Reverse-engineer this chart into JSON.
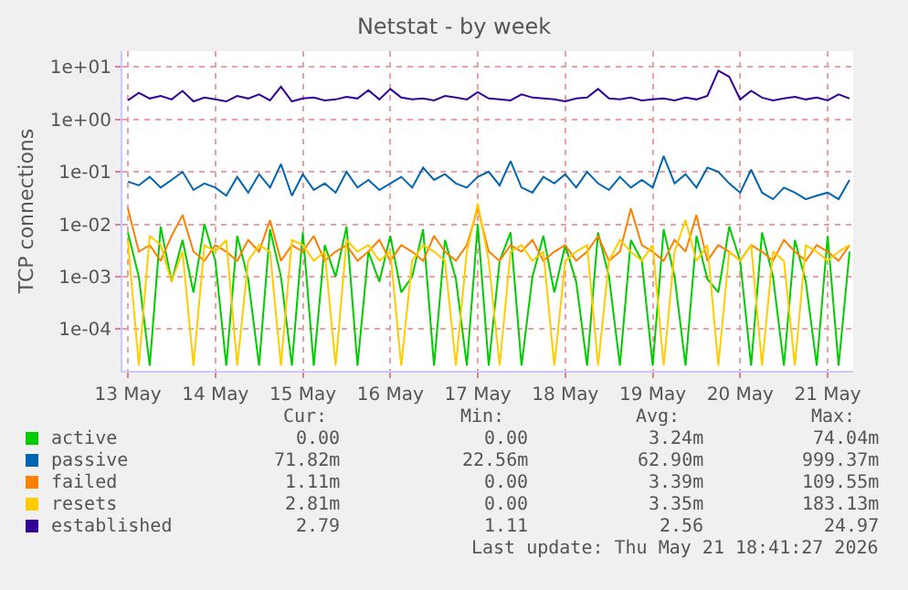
{
  "chart_data": {
    "type": "line",
    "title": "Netstat - by week",
    "ylabel": "TCP connections",
    "log": "y",
    "grid": true,
    "legend": "bottom",
    "marker": "none",
    "line_style": "solid",
    "ylim": [
      1.6e-05,
      20
    ],
    "yticks": [
      {
        "value": 0.0001,
        "label": "1e-04"
      },
      {
        "value": 0.001,
        "label": "1e-03"
      },
      {
        "value": 0.01,
        "label": "1e-02"
      },
      {
        "value": 0.1,
        "label": "1e-01"
      },
      {
        "value": 1,
        "label": "1e+00"
      },
      {
        "value": 10,
        "label": "1e+01"
      }
    ],
    "xlim": [
      "2026-05-12T22:30",
      "2026-05-21T07:00"
    ],
    "xticks": [
      {
        "value": "2026-05-13",
        "label": "13 May"
      },
      {
        "value": "2026-05-14",
        "label": "14 May"
      },
      {
        "value": "2026-05-15",
        "label": "15 May"
      },
      {
        "value": "2026-05-16",
        "label": "16 May"
      },
      {
        "value": "2026-05-17",
        "label": "17 May"
      },
      {
        "value": "2026-05-18",
        "label": "18 May"
      },
      {
        "value": "2026-05-19",
        "label": "19 May"
      },
      {
        "value": "2026-05-20",
        "label": "20 May"
      },
      {
        "value": "2026-05-21",
        "label": "21 May"
      }
    ],
    "x": [
      "2026-05-13T00:00",
      "2026-05-13T03:00",
      "2026-05-13T06:00",
      "2026-05-13T09:00",
      "2026-05-13T12:00",
      "2026-05-13T15:00",
      "2026-05-13T18:00",
      "2026-05-13T21:00",
      "2026-05-14T00:00",
      "2026-05-14T03:00",
      "2026-05-14T06:00",
      "2026-05-14T09:00",
      "2026-05-14T12:00",
      "2026-05-14T15:00",
      "2026-05-14T18:00",
      "2026-05-14T21:00",
      "2026-05-15T00:00",
      "2026-05-15T03:00",
      "2026-05-15T06:00",
      "2026-05-15T09:00",
      "2026-05-15T12:00",
      "2026-05-15T15:00",
      "2026-05-15T18:00",
      "2026-05-15T21:00",
      "2026-05-16T00:00",
      "2026-05-16T03:00",
      "2026-05-16T06:00",
      "2026-05-16T09:00",
      "2026-05-16T12:00",
      "2026-05-16T15:00",
      "2026-05-16T18:00",
      "2026-05-16T21:00",
      "2026-05-17T00:00",
      "2026-05-17T03:00",
      "2026-05-17T06:00",
      "2026-05-17T09:00",
      "2026-05-17T12:00",
      "2026-05-17T15:00",
      "2026-05-17T18:00",
      "2026-05-17T21:00",
      "2026-05-18T00:00",
      "2026-05-18T03:00",
      "2026-05-18T06:00",
      "2026-05-18T09:00",
      "2026-05-18T12:00",
      "2026-05-18T15:00",
      "2026-05-18T18:00",
      "2026-05-18T21:00",
      "2026-05-19T00:00",
      "2026-05-19T03:00",
      "2026-05-19T06:00",
      "2026-05-19T09:00",
      "2026-05-19T12:00",
      "2026-05-19T15:00",
      "2026-05-19T18:00",
      "2026-05-19T21:00",
      "2026-05-20T00:00",
      "2026-05-20T03:00",
      "2026-05-20T06:00",
      "2026-05-20T09:00",
      "2026-05-20T12:00",
      "2026-05-20T15:00",
      "2026-05-20T18:00",
      "2026-05-20T21:00",
      "2026-05-21T00:00",
      "2026-05-21T03:00",
      "2026-05-21T06:00"
    ],
    "series": [
      {
        "name": "active",
        "color": "#00cc00",
        "values": [
          0.007,
          0.001,
          2e-05,
          0.009,
          0.0008,
          0.005,
          0.0005,
          0.01,
          0.002,
          2e-05,
          0.006,
          0.0009,
          2e-05,
          0.008,
          0.001,
          2e-05,
          0.007,
          2e-05,
          0.004,
          0.001,
          0.009,
          2e-05,
          0.003,
          0.0008,
          0.006,
          0.0005,
          0.001,
          0.008,
          2e-05,
          0.005,
          0.0009,
          2e-05,
          0.01,
          2e-05,
          0.002,
          0.007,
          2e-05,
          0.001,
          0.006,
          0.0005,
          0.004,
          0.0008,
          2e-05,
          0.007,
          0.001,
          2e-05,
          0.005,
          0.002,
          2e-05,
          0.008,
          0.001,
          2e-05,
          0.006,
          0.0009,
          0.0005,
          0.009,
          0.002,
          2e-05,
          0.007,
          0.001,
          2e-05,
          0.005,
          0.0008,
          2e-05,
          0.006,
          2e-05,
          0.003
        ]
      },
      {
        "name": "passive",
        "color": "#0066b3",
        "values": [
          0.065,
          0.055,
          0.08,
          0.05,
          0.07,
          0.1,
          0.045,
          0.06,
          0.05,
          0.035,
          0.08,
          0.04,
          0.09,
          0.05,
          0.14,
          0.035,
          0.09,
          0.045,
          0.06,
          0.04,
          0.1,
          0.05,
          0.07,
          0.045,
          0.06,
          0.08,
          0.05,
          0.12,
          0.07,
          0.09,
          0.06,
          0.05,
          0.08,
          0.1,
          0.055,
          0.16,
          0.05,
          0.04,
          0.08,
          0.06,
          0.09,
          0.05,
          0.1,
          0.06,
          0.045,
          0.08,
          0.05,
          0.07,
          0.05,
          0.2,
          0.06,
          0.09,
          0.05,
          0.12,
          0.1,
          0.06,
          0.04,
          0.11,
          0.04,
          0.03,
          0.05,
          0.04,
          0.03,
          0.035,
          0.04,
          0.03,
          0.07
        ]
      },
      {
        "name": "failed",
        "color": "#ff8000",
        "values": [
          0.02,
          0.003,
          0.004,
          0.002,
          0.006,
          0.015,
          0.003,
          0.002,
          0.004,
          0.003,
          0.002,
          0.005,
          0.003,
          0.012,
          0.002,
          0.004,
          0.003,
          0.006,
          0.002,
          0.003,
          0.004,
          0.002,
          0.003,
          0.005,
          0.002,
          0.004,
          0.003,
          0.002,
          0.006,
          0.003,
          0.002,
          0.004,
          0.02,
          0.003,
          0.002,
          0.004,
          0.003,
          0.005,
          0.002,
          0.003,
          0.004,
          0.002,
          0.003,
          0.006,
          0.002,
          0.003,
          0.02,
          0.004,
          0.003,
          0.002,
          0.005,
          0.003,
          0.015,
          0.002,
          0.004,
          0.003,
          0.002,
          0.004,
          0.003,
          0.002,
          0.005,
          0.003,
          0.002,
          0.004,
          0.003,
          0.002,
          0.004
        ]
      },
      {
        "name": "resets",
        "color": "#ffcc00",
        "values": [
          0.005,
          2e-05,
          0.006,
          0.004,
          0.0008,
          0.003,
          2e-05,
          0.004,
          0.003,
          0.005,
          2e-05,
          0.002,
          0.004,
          0.003,
          2e-05,
          0.005,
          0.004,
          0.002,
          0.003,
          2e-05,
          0.005,
          0.003,
          0.004,
          0.002,
          0.003,
          2e-05,
          0.002,
          0.004,
          0.003,
          0.002,
          2e-05,
          0.003,
          0.025,
          0.002,
          2e-05,
          0.003,
          0.004,
          0.002,
          0.003,
          2e-05,
          0.002,
          0.003,
          0.004,
          2e-05,
          0.002,
          0.005,
          0.003,
          0.002,
          0.004,
          2e-05,
          0.003,
          0.012,
          0.002,
          0.004,
          2e-05,
          0.003,
          0.002,
          0.004,
          2e-05,
          0.003,
          0.002,
          2e-05,
          0.004,
          0.003,
          0.002,
          0.003,
          0.004
        ]
      },
      {
        "name": "established",
        "color": "#330099",
        "values": [
          2.3,
          3.2,
          2.5,
          2.8,
          2.4,
          3.5,
          2.2,
          2.6,
          2.4,
          2.2,
          2.8,
          2.5,
          3.0,
          2.3,
          4.2,
          2.2,
          2.5,
          2.6,
          2.3,
          2.4,
          2.7,
          2.5,
          3.6,
          2.4,
          3.8,
          2.6,
          2.4,
          2.5,
          2.3,
          2.8,
          2.6,
          2.4,
          3.3,
          2.5,
          2.4,
          2.3,
          3.0,
          2.6,
          2.5,
          2.4,
          2.2,
          2.5,
          2.6,
          3.8,
          2.5,
          2.4,
          2.6,
          2.3,
          2.4,
          2.5,
          2.3,
          2.6,
          2.4,
          2.8,
          8.5,
          6.5,
          2.4,
          3.5,
          2.6,
          2.3,
          2.5,
          2.7,
          2.4,
          2.6,
          2.3,
          3.0,
          2.5
        ]
      }
    ],
    "annotations": [
      "Cur:",
      "Min:",
      "Avg:",
      "Max:",
      "0.00",
      "0.00",
      "3.24m",
      "74.04m",
      "71.82m",
      "22.56m",
      "62.90m",
      "999.37m",
      "1.11m",
      "0.00",
      "3.39m",
      "109.55m",
      "2.81m",
      "0.00",
      "3.35m",
      "183.13m",
      "2.79",
      "1.11",
      "2.56",
      "24.97",
      "Last update: Thu May 21 18:41:27 2026"
    ]
  }
}
